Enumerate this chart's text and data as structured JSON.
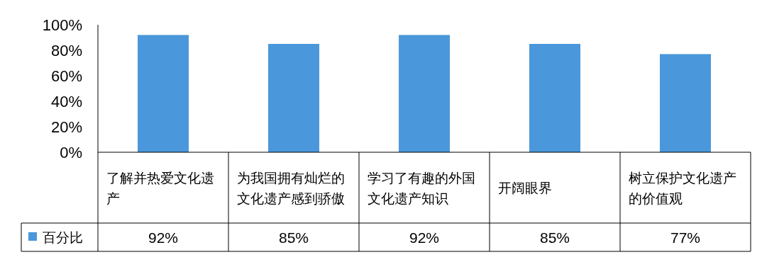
{
  "chart_data": {
    "type": "bar",
    "categories": [
      "了解并热爱文化遗产",
      "为我国拥有灿烂的文化遗产感到骄傲",
      "学习了有趣的外国文化遗产知识",
      "开阔眼界",
      "树立保护文化遗产的价值观"
    ],
    "series": [
      {
        "name": "百分比",
        "color": "#4a98db",
        "values": [
          92,
          85,
          92,
          85,
          77
        ],
        "value_labels": [
          "92%",
          "85%",
          "92%",
          "85%",
          "77%"
        ]
      }
    ],
    "ylim": [
      0,
      100
    ],
    "yticks": [
      {
        "value": 0,
        "label": "0%"
      },
      {
        "value": 20,
        "label": "20%"
      },
      {
        "value": 40,
        "label": "40%"
      },
      {
        "value": 60,
        "label": "60%"
      },
      {
        "value": 80,
        "label": "80%"
      },
      {
        "value": 100,
        "label": "100%"
      }
    ],
    "grid": false,
    "legend": "bottom left"
  }
}
